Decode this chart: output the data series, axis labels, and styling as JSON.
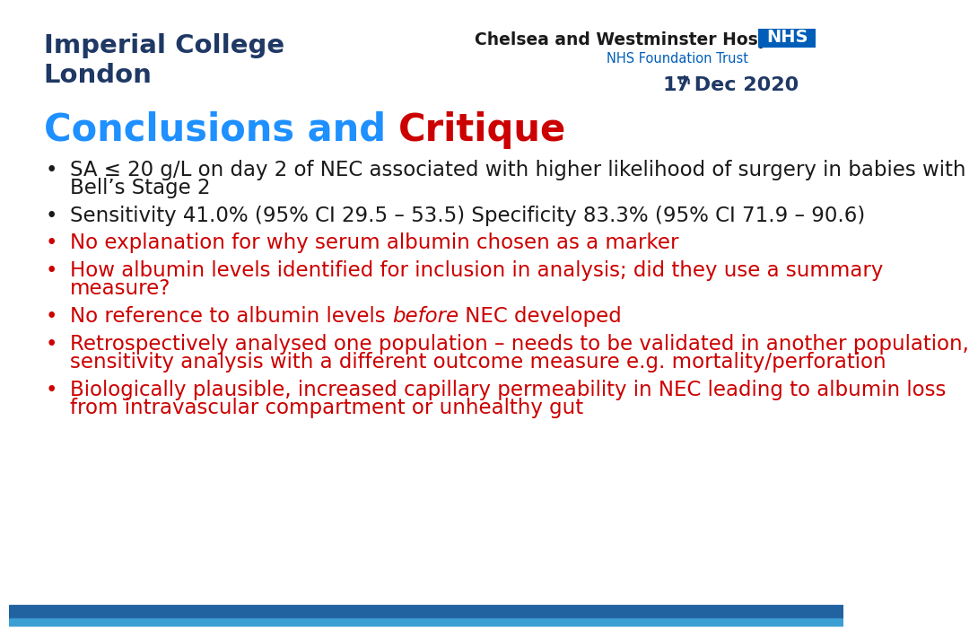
{
  "bg_color": "#ffffff",
  "imperial_college_text": "Imperial College\nLondon",
  "imperial_color": "#1f3864",
  "chelsea_text": "Chelsea and Westminster Hospital",
  "chelsea_color": "#1a1a1a",
  "nhs_text": "NHS",
  "nhs_bg_color": "#005EB8",
  "nhs_foundation_text": "NHS Foundation Trust",
  "nhs_foundation_color": "#005EB8",
  "date_color": "#1f3864",
  "title_conclusions": "Conclusions and ",
  "title_critique": "Critique",
  "title_blue_color": "#1e90ff",
  "title_red_color": "#cc0000",
  "bottom_bar_color": "#2E74B5",
  "bottom_bar2_color": "#2E74B5",
  "bullet_black_color": "#1a1a1a",
  "bullet_red_color": "#cc0000",
  "bullet_char": "•",
  "bullets": [
    {
      "color": "#1a1a1a",
      "lines": [
        {
          "text": "SA ≤ 20 g/L on day 2 of NEC associated with higher likelihood of surgery in babies with",
          "italic": false
        },
        {
          "text": "Bell’s Stage 2",
          "italic": false
        }
      ]
    },
    {
      "color": "#1a1a1a",
      "lines": [
        {
          "text": "Sensitivity 41.0% (95% CI 29.5 – 53.5) Specificity 83.3% (95% CI 71.9 – 90.6)",
          "italic": false
        }
      ]
    },
    {
      "color": "#cc0000",
      "lines": [
        {
          "text": "No explanation for why serum albumin chosen as a marker",
          "italic": false
        }
      ]
    },
    {
      "color": "#cc0000",
      "lines": [
        {
          "text": "How albumin levels identified for inclusion in analysis; did they use a summary",
          "italic": false
        },
        {
          "text": "measure?",
          "italic": false
        }
      ]
    },
    {
      "color": "#cc0000",
      "lines": [
        {
          "segments": [
            {
              "text": "No reference to albumin levels ",
              "italic": false
            },
            {
              "text": "before",
              "italic": true
            },
            {
              "text": " NEC developed",
              "italic": false
            }
          ]
        }
      ]
    },
    {
      "color": "#cc0000",
      "lines": [
        {
          "text": "Retrospectively analysed one population – needs to be validated in another population,",
          "italic": false
        },
        {
          "text": "sensitivity analysis with a different outcome measure e.g. mortality/perforation",
          "italic": false
        }
      ]
    },
    {
      "color": "#cc0000",
      "lines": [
        {
          "text": "Biologically plausible, increased capillary permeability in NEC leading to albumin loss",
          "italic": false
        },
        {
          "text": "from intravascular compartment or unhealthy gut",
          "italic": false
        }
      ]
    }
  ]
}
